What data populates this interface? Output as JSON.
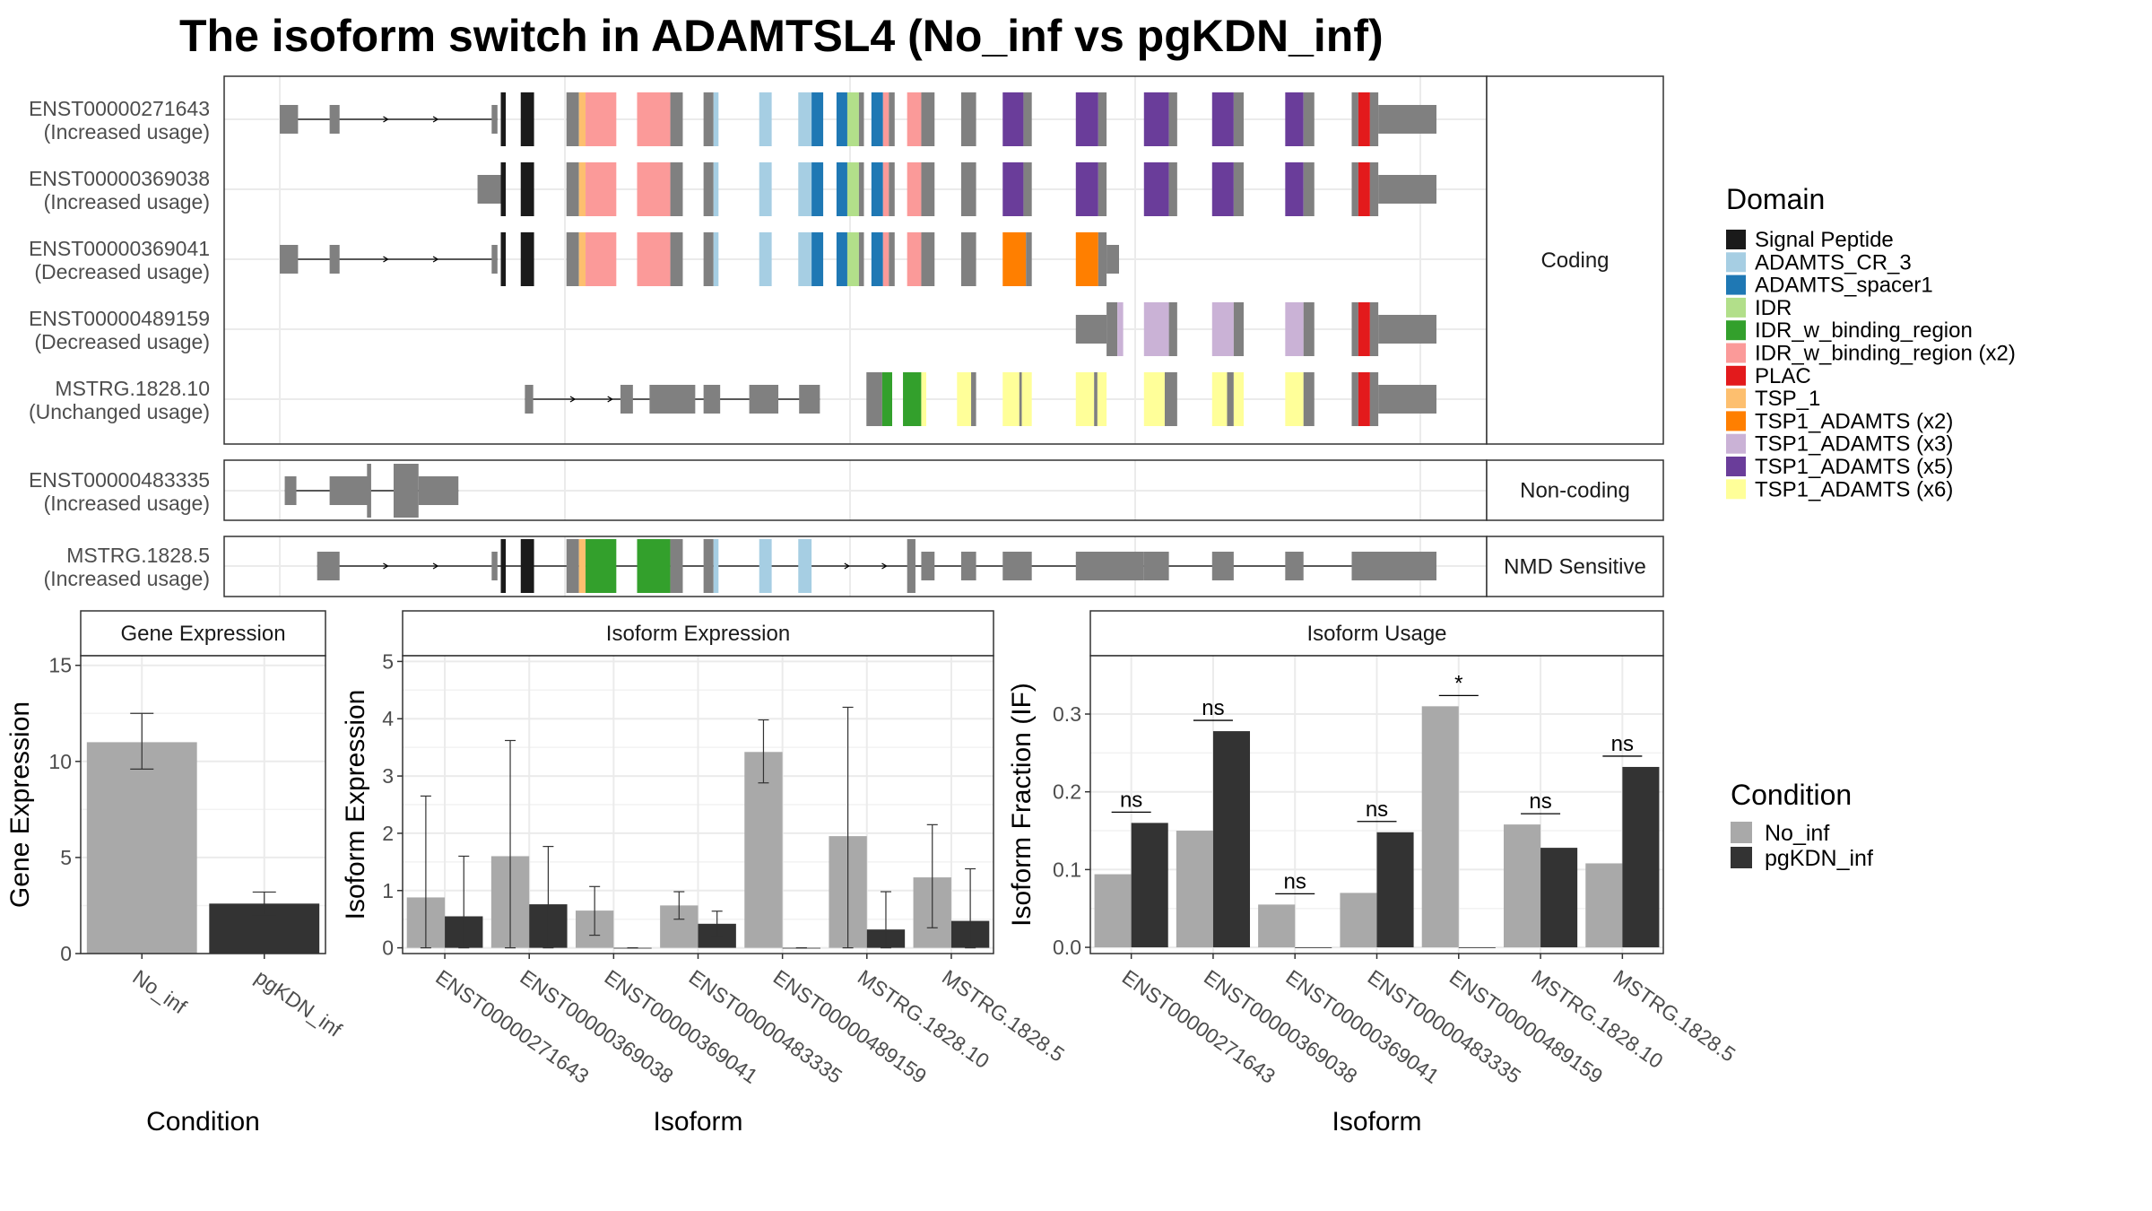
{
  "figure": {
    "title": "The isoform switch in ADAMTSL4 (No_inf vs pgKDN_inf)"
  },
  "chart_data": [
    {
      "type": "gene_structure",
      "genome_range": [
        0,
        1000
      ],
      "panels": [
        {
          "strip": "Coding",
          "tracks": [
            {
              "id": "ENST00000271643",
              "usage": "(Increased usage)",
              "thin": [
                [
                  0,
                  50
                ],
                [
                  60,
                  165
                ],
                [
                  175,
                  245
                ],
                [
                  265,
                  375
                ],
                [
                  380,
                  410
                ],
                [
                  420,
                  540
                ],
                [
                  552,
                  635
                ]
              ],
              "arrows": [
                105,
                150
              ],
              "exons": [
                [
                  0,
                  20,
                  "Intron"
                ],
                [
                  45,
                  55,
                  "Intron"
                ],
                [
                  200,
                  212,
                  "Intron"
                ],
                [
                  227,
                  240,
                  "Intron"
                ],
                [
                  262,
                  270,
                  "Intron"
                ],
                [
                  276,
                  305,
                  "Intron"
                ],
                [
                  320,
                  340,
                  "Intron"
                ],
                [
                  355,
                  370,
                  "Intron"
                ],
                [
                  431,
                  445,
                  "Intron"
                ],
                [
                  465,
                  470,
                  "Intron"
                ],
                [
                  492,
                  505,
                  "Intron"
                ],
                [
                  576,
                  596,
                  "Intron"
                ],
                [
                  628,
                  642,
                  "Intron"
                ],
                [
                  667,
                  677,
                  "Intron"
                ],
                [
                  686,
                  697,
                  "Intron"
                ],
                [
                  730,
                  750,
                  "Intron"
                ],
                [
                  774,
                  784,
                  "Intron"
                ],
                [
                  792,
                  802,
                  "Intron"
                ],
                [
                  815,
                  855,
                  "Intron"
                ]
              ],
              "cds": [
                [
                  200,
                  216
                ],
                [
                  230,
                  270
                ],
                [
                  270,
                  310
                ],
                [
                  320,
                  340
                ],
                [
                  355,
                  370
                ],
                [
                  380,
                  410
                ],
                [
                  420,
                  435
                ],
                [
                  435,
                  445
                ],
                [
                  453,
                  470
                ],
                [
                  470,
                  490
                ],
                [
                  495,
                  514
                ],
                [
                  515,
                  522
                ],
                [
                  530,
                  550
                ],
                [
                  550,
                  570
                ],
                [
                  596,
                  628
                ],
                [
                  642,
                  667
                ],
                [
                  677,
                  696
                ],
                [
                  697,
                  722
                ],
                [
                  742,
                  760
                ],
                [
                  774,
                  794
                ]
              ],
              "cds_domain": [
                "Signal Peptide",
                "Signal Peptide",
                "Intron",
                "Intron",
                "Intron",
                "Intron",
                "ADAMTS_CR_3",
                "ADAMTS_CR_3",
                "ADAMTS_spacer1",
                "ADAMTS_spacer1",
                "IDR",
                "Intron",
                "Intron",
                "Intron",
                "TSP1_ADAMTS (x5)",
                "TSP1_ADAMTS (x5)",
                "TSP1_ADAMTS (x5)",
                "TSP1_ADAMTS (x5)",
                "TSP1_ADAMTS (x5)",
                "PLAC"
              ],
              "domain_blocks": [
                [
                  215,
                  222,
                  "Signal Peptide"
                ],
                [
                  235,
                  248,
                  "Signal Peptide"
                ],
                [
                  282,
                  288,
                  "TSP_1"
                ],
                [
                  288,
                  315,
                  "IDR_w_binding_region (x2)"
                ],
                [
                  335,
                  360,
                  "IDR_w_binding_region (x2)"
                ],
                [
                  410,
                  425,
                  "ADAMTS_CR_3"
                ],
                [
                  440,
                  447,
                  "ADAMTS_CR_3"
                ],
                [
                  450,
                  465,
                  "ADAMTS_spacer1"
                ],
                [
                  470,
                  475,
                  "ADAMTS_spacer1"
                ],
                [
                  475,
                  482,
                  "IDR"
                ],
                [
                  482,
                  487,
                  "IDR_w_binding_region"
                ],
                [
                  500,
                  510,
                  "ADAMTS_spacer1"
                ],
                [
                  510,
                  514,
                  "IDR_w_binding_region (x2)"
                ],
                [
                  530,
                  540,
                  "IDR_w_binding_region (x2)"
                ],
                [
                  610,
                  627,
                  "TSP1_ADAMTS (x5)"
                ],
                [
                  660,
                  672,
                  "TSP1_ADAMTS (x5)"
                ],
                [
                  700,
                  710,
                  "TSP1_ADAMTS (x5)"
                ],
                [
                  735,
                  745,
                  "TSP1_ADAMTS (x5)"
                ],
                [
                  765,
                  775,
                  "TSP1_ADAMTS (x5)"
                ],
                [
                  800,
                  808,
                  "PLAC"
                ]
              ]
            },
            {
              "id": "ENST00000369038",
              "usage": "(Increased usage)"
            },
            {
              "id": "ENST00000369041",
              "usage": "(Decreased usage)"
            },
            {
              "id": "ENST00000489159",
              "usage": "(Decreased usage)"
            },
            {
              "id": "MSTRG.1828.10",
              "usage": "(Unchanged usage)"
            }
          ]
        },
        {
          "strip": "Non-coding",
          "tracks": [
            {
              "id": "ENST00000483335",
              "usage": "(Increased usage)"
            }
          ]
        },
        {
          "strip": "NMD Sensitive",
          "tracks": [
            {
              "id": "MSTRG.1828.5",
              "usage": "(Increased usage)"
            }
          ]
        }
      ],
      "legend": {
        "title": "Domain",
        "items": [
          {
            "name": "Signal Peptide",
            "color": "#1a1a1a"
          },
          {
            "name": "ADAMTS_CR_3",
            "color": "#a6cee3"
          },
          {
            "name": "ADAMTS_spacer1",
            "color": "#1f78b4"
          },
          {
            "name": "IDR",
            "color": "#b2df8a"
          },
          {
            "name": "IDR_w_binding_region",
            "color": "#33a02c"
          },
          {
            "name": "IDR_w_binding_region (x2)",
            "color": "#fb9a99"
          },
          {
            "name": "PLAC",
            "color": "#e31a1c"
          },
          {
            "name": "TSP_1",
            "color": "#fdbf6f"
          },
          {
            "name": "TSP1_ADAMTS (x2)",
            "color": "#ff7f00"
          },
          {
            "name": "TSP1_ADAMTS (x3)",
            "color": "#cab2d6"
          },
          {
            "name": "TSP1_ADAMTS (x5)",
            "color": "#6a3d9a"
          },
          {
            "name": "TSP1_ADAMTS (x6)",
            "color": "#ffff99"
          }
        ]
      }
    },
    {
      "type": "bar",
      "strip": "Gene Expression",
      "categories": [
        "No_inf",
        "pgKDN_inf"
      ],
      "values": [
        11.0,
        2.6
      ],
      "error_low": [
        9.6,
        2.0
      ],
      "error_high": [
        12.5,
        3.2
      ],
      "xlabel": "Condition",
      "ylabel": "Gene Expression",
      "ylim": [
        0,
        15.5
      ],
      "yticks": [
        0,
        5,
        10,
        15
      ]
    },
    {
      "type": "bar",
      "strip": "Isoform Expression",
      "categories": [
        "ENST00000271643",
        "ENST00000369038",
        "ENST00000369041",
        "ENST00000483335",
        "ENST00000489159",
        "MSTRG.1828.10",
        "MSTRG.1828.5"
      ],
      "series": [
        {
          "name": "No_inf",
          "values": [
            0.88,
            1.6,
            0.65,
            0.74,
            3.42,
            1.95,
            1.23
          ],
          "error_low": [
            0.0,
            0.0,
            0.22,
            0.5,
            2.88,
            0.0,
            0.35
          ],
          "error_high": [
            2.65,
            3.62,
            1.07,
            0.98,
            3.98,
            4.2,
            2.15
          ]
        },
        {
          "name": "pgKDN_inf",
          "values": [
            0.55,
            0.76,
            0.0,
            0.42,
            0.0,
            0.32,
            0.47
          ],
          "error_low": [
            0.0,
            0.0,
            0.0,
            0.2,
            0.0,
            0.0,
            0.0
          ],
          "error_high": [
            1.6,
            1.77,
            0.0,
            0.64,
            0.0,
            0.98,
            1.38
          ]
        }
      ],
      "xlabel": "Isoform",
      "ylabel": "Isoform Expression",
      "ylim": [
        -0.1,
        5.1
      ],
      "yticks": [
        0,
        1,
        2,
        3,
        4,
        5
      ]
    },
    {
      "type": "bar",
      "strip": "Isoform Usage",
      "categories": [
        "ENST00000271643",
        "ENST00000369038",
        "ENST00000369041",
        "ENST00000483335",
        "ENST00000489159",
        "MSTRG.1828.10",
        "MSTRG.1828.5"
      ],
      "series": [
        {
          "name": "No_inf",
          "values": [
            0.094,
            0.15,
            0.055,
            0.07,
            0.31,
            0.158,
            0.108
          ]
        },
        {
          "name": "pgKDN_inf",
          "values": [
            0.16,
            0.278,
            0.0,
            0.148,
            0.0,
            0.128,
            0.232
          ]
        }
      ],
      "significance": [
        "ns",
        "ns",
        "ns",
        "ns",
        "*",
        "ns",
        "ns"
      ],
      "xlabel": "Isoform",
      "ylabel": "Isoform Fraction (IF)",
      "ylim": [
        -0.008,
        0.375
      ],
      "yticks": [
        0.0,
        0.1,
        0.2,
        0.3
      ],
      "ytick_labels": [
        "0.0",
        "0.1",
        "0.2",
        "0.3"
      ]
    }
  ],
  "condition_legend": {
    "title": "Condition",
    "items": [
      {
        "name": "No_inf",
        "color": "#a9a9a9"
      },
      {
        "name": "pgKDN_inf",
        "color": "#333333"
      }
    ]
  }
}
